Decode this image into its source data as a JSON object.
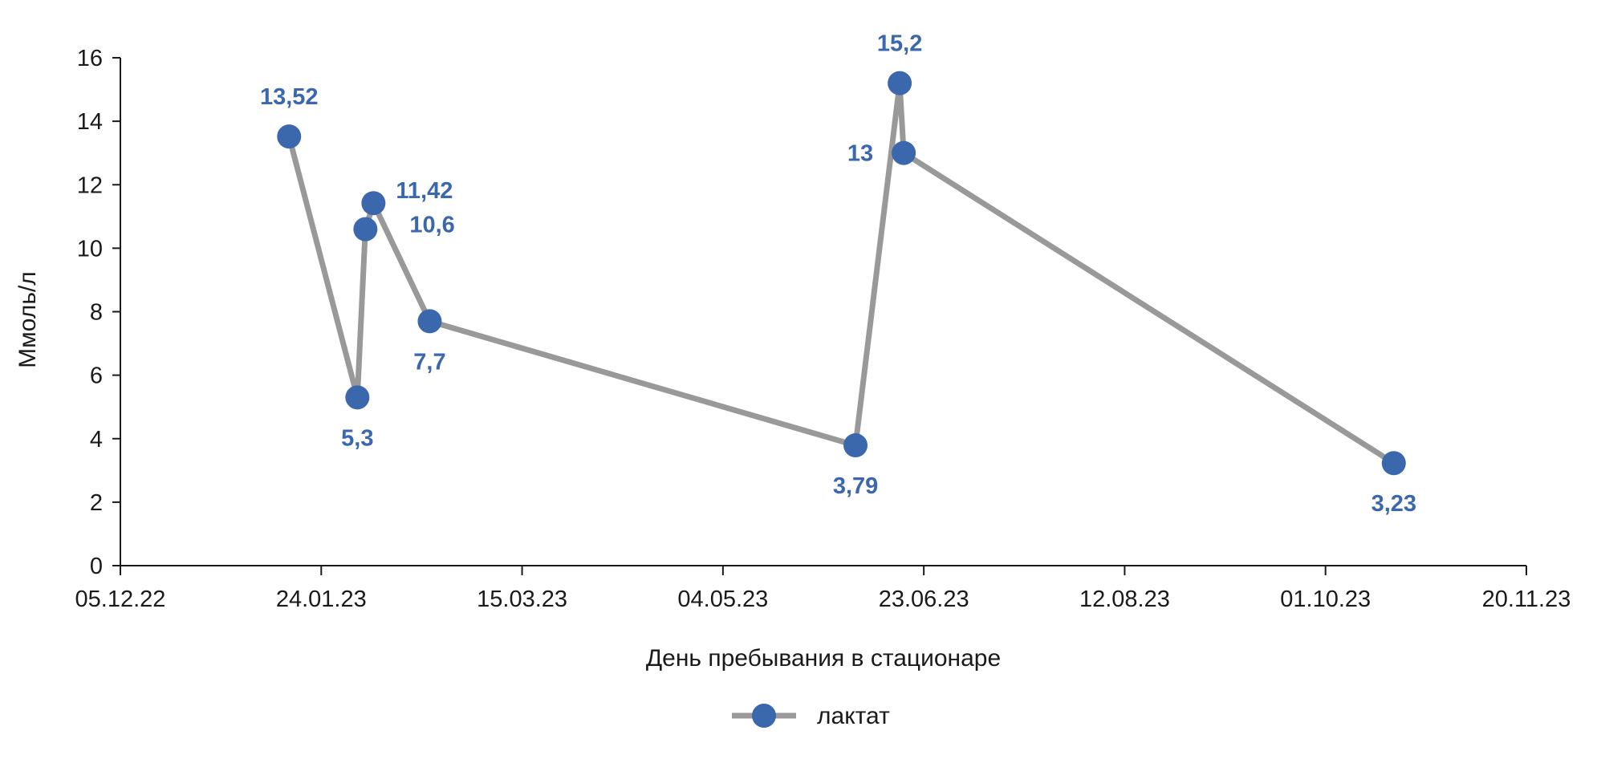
{
  "chart_data": {
    "type": "line",
    "xlabel": "День пребывания в стационаре",
    "ylabel": "Ммоль/л",
    "ylim": [
      0,
      16
    ],
    "yticks": [
      "0",
      "2",
      "4",
      "6",
      "8",
      "10",
      "12",
      "14",
      "16"
    ],
    "xlim": [
      "2022-12-05",
      "2023-11-20"
    ],
    "xticks": [
      {
        "date": "2022-12-05",
        "label": "05.12.22"
      },
      {
        "date": "2023-01-24",
        "label": "24.01.23"
      },
      {
        "date": "2023-03-15",
        "label": "15.03.23"
      },
      {
        "date": "2023-05-04",
        "label": "04.05.23"
      },
      {
        "date": "2023-06-23",
        "label": "23.06.23"
      },
      {
        "date": "2023-08-12",
        "label": "12.08.23"
      },
      {
        "date": "2023-10-01",
        "label": "01.10.23"
      },
      {
        "date": "2023-11-20",
        "label": "20.11.23"
      }
    ],
    "grid": false,
    "legend_position": "bottom",
    "series": [
      {
        "name": "лактат",
        "line_color": "#999999",
        "marker_color": "#3b67ad",
        "points": [
          {
            "x": "2023-01-16",
            "y": 13.52,
            "label": "13,52",
            "label_pos": "above"
          },
          {
            "x": "2023-02-02",
            "y": 5.3,
            "label": "5,3",
            "label_pos": "below"
          },
          {
            "x": "2023-02-04",
            "y": 10.6,
            "label": "10,6",
            "label_pos": "right-below"
          },
          {
            "x": "2023-02-06",
            "y": 11.42,
            "label": "11,42",
            "label_pos": "right"
          },
          {
            "x": "2023-02-20",
            "y": 7.7,
            "label": "7,7",
            "label_pos": "below"
          },
          {
            "x": "2023-06-06",
            "y": 3.79,
            "label": "3,79",
            "label_pos": "below"
          },
          {
            "x": "2023-06-17",
            "y": 15.2,
            "label": "15,2",
            "label_pos": "above"
          },
          {
            "x": "2023-06-18",
            "y": 13,
            "label": "13",
            "label_pos": "left"
          },
          {
            "x": "2023-10-18",
            "y": 3.23,
            "label": "3,23",
            "label_pos": "below"
          }
        ]
      }
    ]
  }
}
